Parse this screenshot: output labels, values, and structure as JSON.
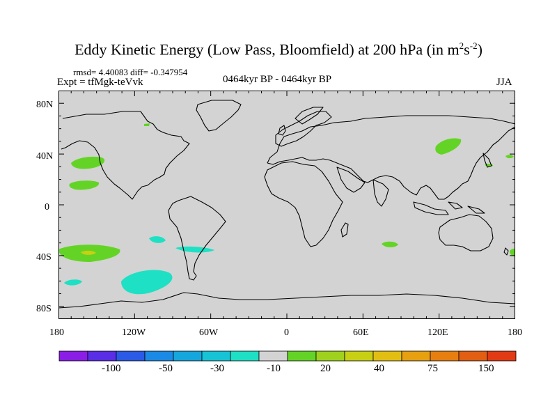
{
  "title": {
    "main": "Eddy Kinetic Energy (Low Pass, Bloomfield) at 200 hPa (in m",
    "sup1": "2",
    "mid": "s",
    "sup2": "-2",
    "close": ")"
  },
  "stats": "rmsd= 4.40083 diff= -0.347954",
  "expt": "Expt = tfMgk-teVvk",
  "runs": "0464kyr BP - 0464kyr BP",
  "season": "JJA",
  "lat_ticks": [
    "80N",
    "40N",
    "0",
    "40S",
    "80S"
  ],
  "lon_ticks": [
    "180",
    "120W",
    "60W",
    "0",
    "60E",
    "120E",
    "180"
  ],
  "colorbar": {
    "colors": [
      "#8a1ee6",
      "#5a2ee6",
      "#2a5ae6",
      "#1a8ae6",
      "#15a6de",
      "#16c4d6",
      "#1ee0c4",
      "#d3d3d3",
      "#63d425",
      "#9ed21c",
      "#c8d014",
      "#e2be12",
      "#e6a010",
      "#e67e10",
      "#e25e12",
      "#e23a14"
    ],
    "labels": [
      "-100",
      "-50",
      "-30",
      "-10",
      "20",
      "40",
      "75",
      "150"
    ]
  },
  "colors": {
    "ocean_background": "#d3d3d3",
    "coastline": "#000000",
    "positive_level_1": "#63d425",
    "positive_level_3": "#c8d014",
    "negative_level_1": "#1ee0c4",
    "negative_level_2": "#16c4d6"
  }
}
